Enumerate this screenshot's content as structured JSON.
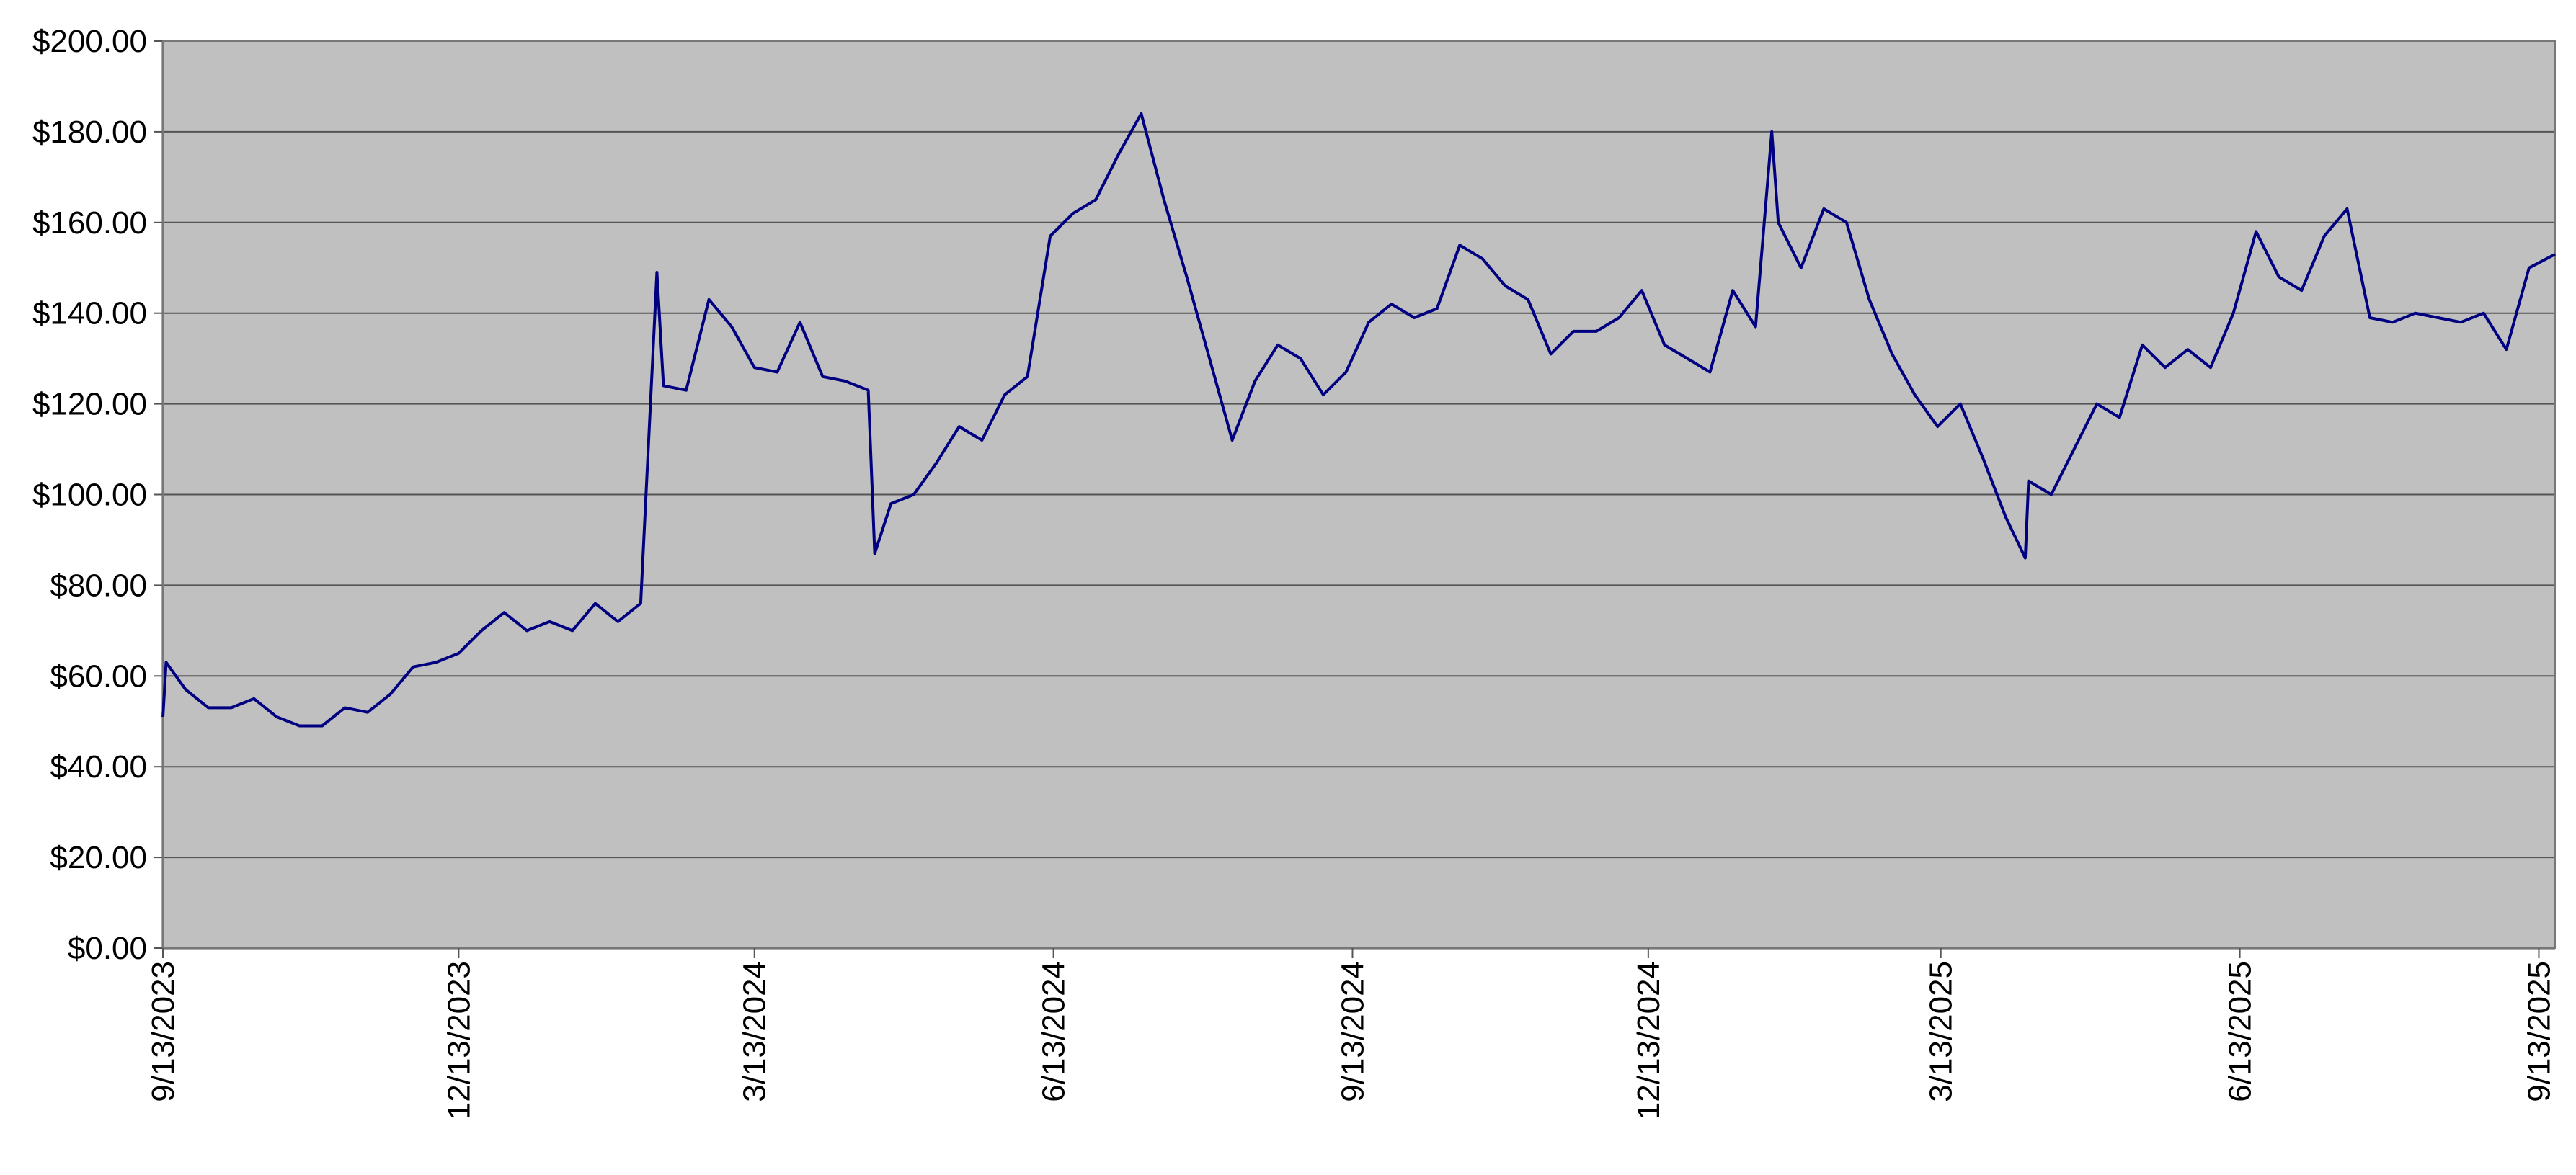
{
  "chart_data": {
    "type": "line",
    "color": "#000080",
    "grid": true,
    "x": [
      "9/13/2023",
      "9/14/2023",
      "9/20/2023",
      "9/27/2023",
      "10/4/2023",
      "10/11/2023",
      "10/18/2023",
      "10/25/2023",
      "11/1/2023",
      "11/8/2023",
      "11/15/2023",
      "11/22/2023",
      "11/29/2023",
      "12/6/2023",
      "12/13/2023",
      "12/20/2023",
      "12/27/2023",
      "1/3/2024",
      "1/10/2024",
      "1/17/2024",
      "1/24/2024",
      "1/31/2024",
      "2/7/2024",
      "2/12/2024",
      "2/14/2024",
      "2/21/2024",
      "2/28/2024",
      "3/6/2024",
      "3/13/2024",
      "3/20/2024",
      "3/27/2024",
      "4/3/2024",
      "4/10/2024",
      "4/17/2024",
      "4/19/2024",
      "4/24/2024",
      "5/1/2024",
      "5/8/2024",
      "5/15/2024",
      "5/22/2024",
      "5/29/2024",
      "6/5/2024",
      "6/12/2024",
      "6/19/2024",
      "6/26/2024",
      "7/3/2024",
      "7/10/2024",
      "7/17/2024",
      "7/24/2024",
      "7/31/2024",
      "8/7/2024",
      "8/14/2024",
      "8/21/2024",
      "8/28/2024",
      "9/4/2024",
      "9/11/2024",
      "9/18/2024",
      "9/25/2024",
      "10/2/2024",
      "10/9/2024",
      "10/16/2024",
      "10/23/2024",
      "10/30/2024",
      "11/6/2024",
      "11/13/2024",
      "11/20/2024",
      "11/27/2024",
      "12/4/2024",
      "12/11/2024",
      "12/18/2024",
      "12/25/2024",
      "1/1/2025",
      "1/8/2025",
      "1/15/2025",
      "1/20/2025",
      "1/22/2025",
      "1/29/2025",
      "2/5/2025",
      "2/12/2025",
      "2/19/2025",
      "2/26/2025",
      "3/5/2025",
      "3/12/2025",
      "3/19/2025",
      "3/26/2025",
      "4/2/2025",
      "4/8/2025",
      "4/9/2025",
      "4/16/2025",
      "4/23/2025",
      "4/30/2025",
      "5/7/2025",
      "5/14/2025",
      "5/21/2025",
      "5/28/2025",
      "6/4/2025",
      "6/11/2025",
      "6/18/2025",
      "6/25/2025",
      "7/2/2025",
      "7/9/2025",
      "7/16/2025",
      "7/23/2025",
      "7/30/2025",
      "8/6/2025",
      "8/13/2025",
      "8/20/2025",
      "8/27/2025",
      "9/3/2025",
      "9/10/2025",
      "9/18/2025"
    ],
    "values": [
      51,
      63,
      57,
      53,
      53,
      55,
      51,
      49,
      49,
      53,
      52,
      56,
      62,
      63,
      65,
      70,
      74,
      70,
      72,
      70,
      76,
      72,
      76,
      149,
      124,
      123,
      143,
      137,
      128,
      127,
      138,
      126,
      125,
      123,
      87,
      98,
      100,
      107,
      115,
      112,
      122,
      126,
      157,
      162,
      165,
      175,
      184,
      165,
      148,
      130,
      112,
      125,
      133,
      130,
      122,
      127,
      138,
      142,
      139,
      141,
      155,
      152,
      146,
      143,
      131,
      136,
      136,
      139,
      145,
      133,
      130,
      127,
      145,
      137,
      180,
      160,
      150,
      163,
      160,
      143,
      131,
      122,
      115,
      120,
      108,
      95,
      86,
      103,
      100,
      110,
      120,
      117,
      133,
      128,
      132,
      128,
      140,
      158,
      148,
      145,
      157,
      163,
      139,
      138,
      140,
      139,
      138,
      140,
      132,
      150,
      153
    ],
    "xlim": [
      "9/13/2023",
      "9/18/2025"
    ],
    "xticks": [
      "9/13/2023",
      "12/13/2023",
      "3/13/2024",
      "6/13/2024",
      "9/13/2024",
      "12/13/2024",
      "3/13/2025",
      "6/13/2025",
      "9/13/2025"
    ],
    "ylim": [
      0,
      200
    ],
    "yticks": [
      {
        "value": 0,
        "label": "$0.00"
      },
      {
        "value": 20,
        "label": "$20.00"
      },
      {
        "value": 40,
        "label": "$40.00"
      },
      {
        "value": 60,
        "label": "$60.00"
      },
      {
        "value": 80,
        "label": "$80.00"
      },
      {
        "value": 100,
        "label": "$100.00"
      },
      {
        "value": 120,
        "label": "$120.00"
      },
      {
        "value": 140,
        "label": "$140.00"
      },
      {
        "value": 160,
        "label": "$160.00"
      },
      {
        "value": 180,
        "label": "$180.00"
      },
      {
        "value": 200,
        "label": "$200.00"
      }
    ]
  }
}
